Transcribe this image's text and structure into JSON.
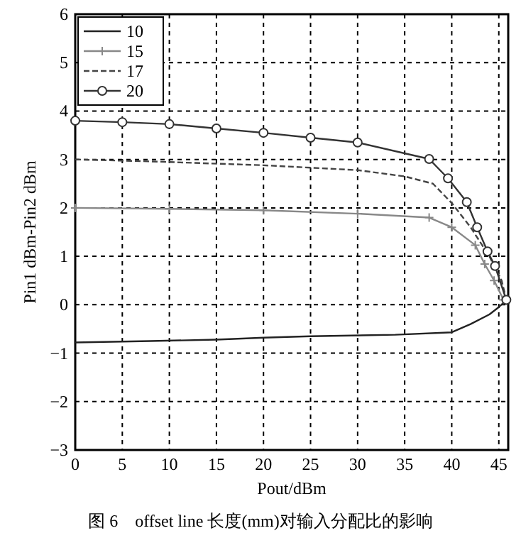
{
  "chart_data": {
    "type": "line",
    "xlabel": "Pout/dBm",
    "ylabel": "Pin1 dBm-Pin2 dBm",
    "annotations": [
      "图 6　offset line 长度(mm)对输入分配比的影响"
    ],
    "xlim": [
      0,
      46
    ],
    "ylim": [
      -3,
      6
    ],
    "xticks": [
      0,
      5,
      10,
      15,
      20,
      25,
      30,
      35,
      40,
      45
    ],
    "yticks": [
      -3,
      -2,
      -1,
      0,
      1,
      2,
      3,
      4,
      5,
      6
    ],
    "grid": true,
    "legend": "top left",
    "series": [
      {
        "name": "10",
        "color": "#222222",
        "marker": "none",
        "line_style": "solid",
        "x": [
          0,
          8,
          15,
          20,
          25,
          34,
          40,
          42,
          44,
          45,
          45.8
        ],
        "values": [
          -0.78,
          -0.75,
          -0.72,
          -0.68,
          -0.65,
          -0.62,
          -0.57,
          -0.4,
          -0.2,
          -0.05,
          0.1
        ]
      },
      {
        "name": "15",
        "color": "#888888",
        "marker": "cross",
        "line_style": "solid",
        "x": [
          0,
          10,
          20,
          30,
          37.6,
          40,
          42.5,
          43.5,
          44.5,
          45.5
        ],
        "values": [
          2.0,
          1.98,
          1.95,
          1.88,
          1.8,
          1.6,
          1.23,
          0.84,
          0.5,
          0.1
        ]
      },
      {
        "name": "17",
        "color": "#444444",
        "marker": "none",
        "line_style": "dashed",
        "x": [
          0,
          8,
          20,
          30,
          35,
          38,
          40,
          42,
          44,
          45.3,
          45.8
        ],
        "values": [
          3.0,
          2.96,
          2.88,
          2.78,
          2.65,
          2.5,
          2.1,
          1.6,
          1.0,
          0.5,
          0.1
        ]
      },
      {
        "name": "20",
        "color": "#333333",
        "marker": "circle",
        "line_style": "solid",
        "x": [
          0,
          5,
          10,
          15,
          20,
          25,
          30,
          37.6,
          39.6,
          41.6,
          42.7,
          43.8,
          44.6,
          45.8
        ],
        "values": [
          3.8,
          3.77,
          3.73,
          3.64,
          3.55,
          3.45,
          3.35,
          3.01,
          2.61,
          2.12,
          1.6,
          1.1,
          0.8,
          0.1
        ]
      }
    ]
  }
}
